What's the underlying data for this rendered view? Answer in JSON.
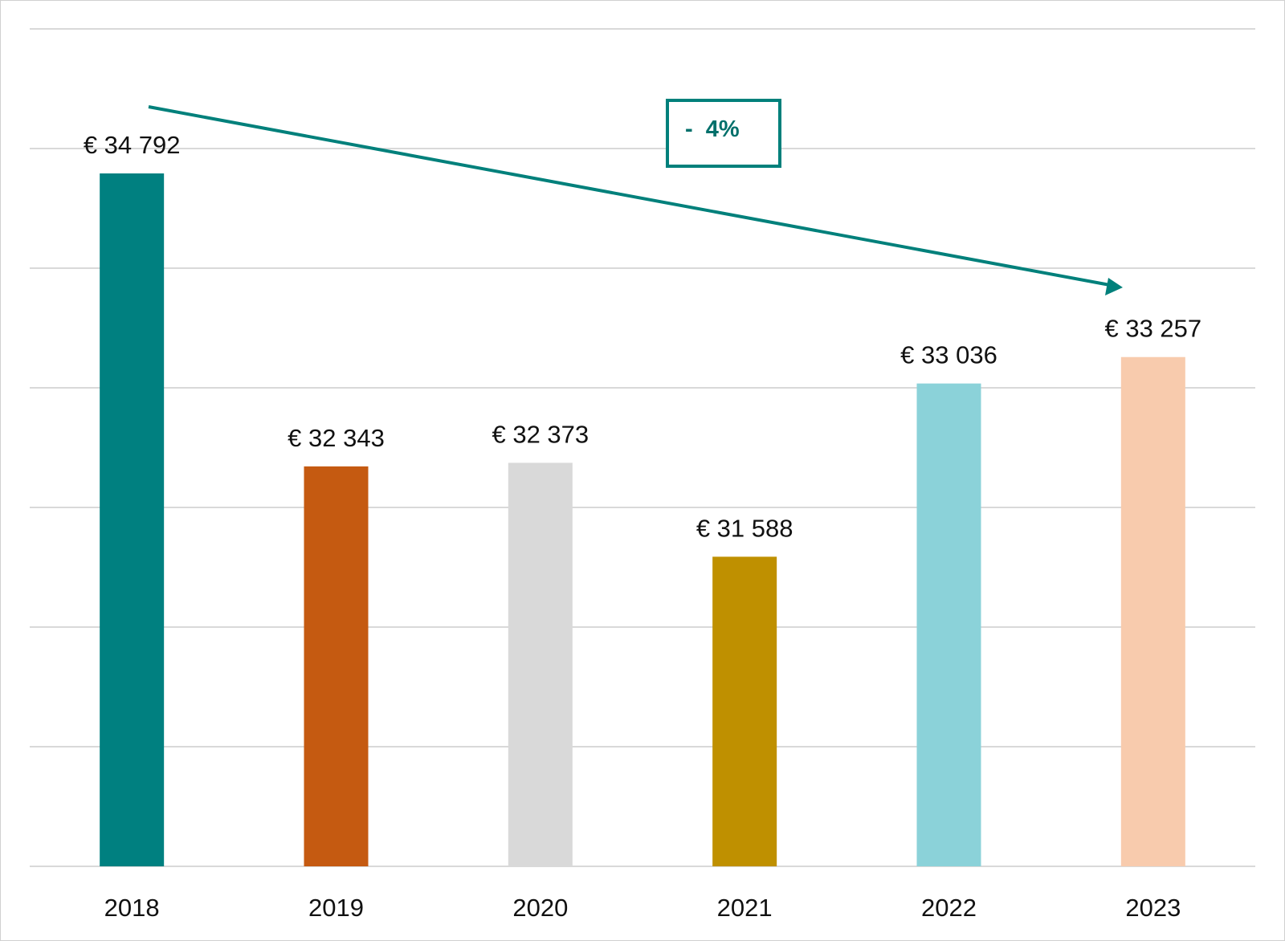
{
  "chart_data": {
    "type": "bar",
    "categories": [
      "2018",
      "2019",
      "2020",
      "2021",
      "2022",
      "2023"
    ],
    "values": [
      34792,
      32343,
      32373,
      31588,
      33036,
      33257
    ],
    "data_labels": [
      "€ 34 792",
      "€ 32 343",
      "€ 32 373",
      "€ 31 588",
      "€ 33 036",
      "€ 33 257"
    ],
    "colors": [
      "#008080",
      "#c55a11",
      "#d9d9d9",
      "#bf9000",
      "#8bd2d9",
      "#f8cbad"
    ],
    "title": "",
    "xlabel": "",
    "ylabel": "",
    "ylim": [
      29000,
      36000
    ],
    "grid": true,
    "gridline_step": 1000,
    "annotation": {
      "text": "-  4%",
      "color": "#00807b",
      "arrow_from": "2018",
      "arrow_to": "2023"
    }
  }
}
